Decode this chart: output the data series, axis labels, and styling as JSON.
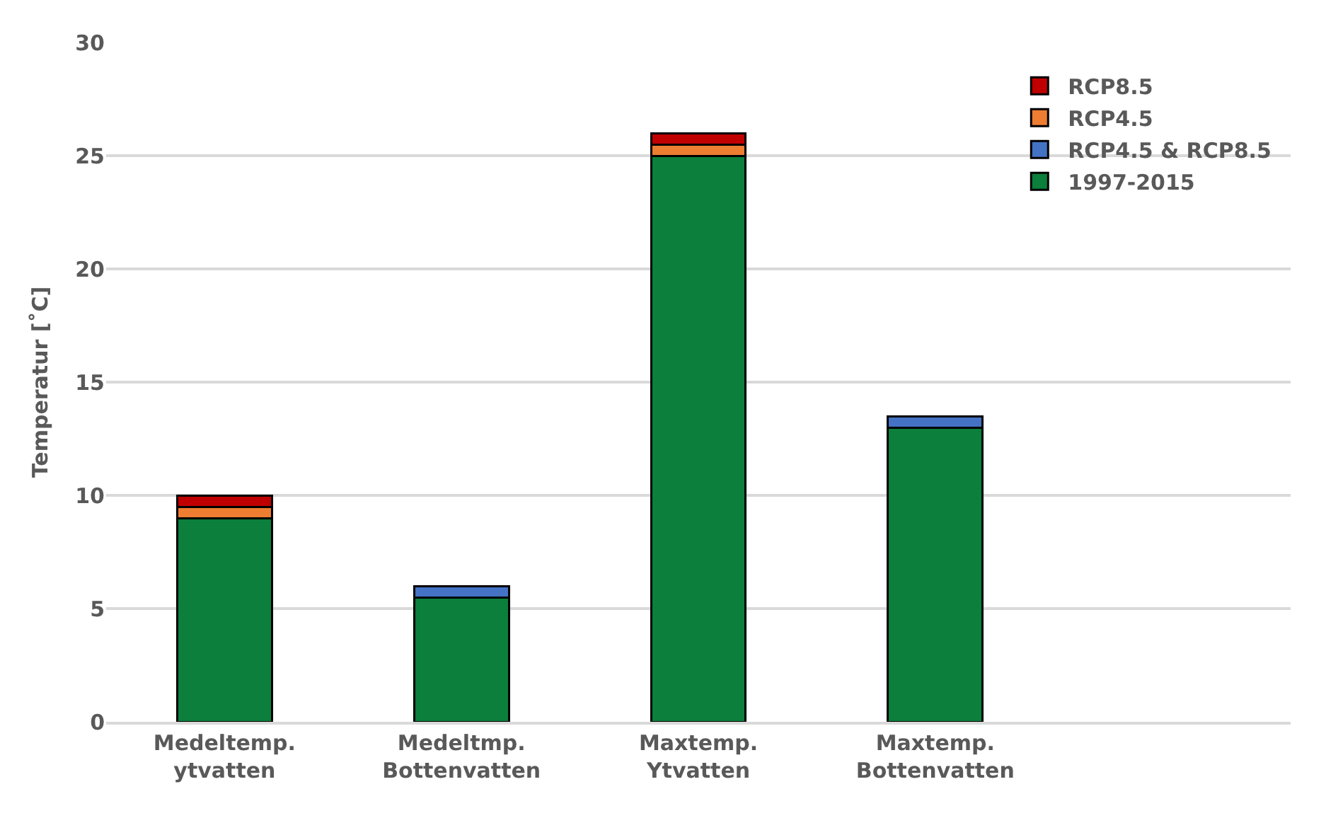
{
  "chart_data": {
    "type": "bar",
    "stacked": true,
    "ylabel": "Temperatur [˚C]",
    "categories": [
      "Medeltemp.\nytvatten",
      "Medeltmp.\nBottenvatten",
      "Maxtemp.\nYtvatten",
      "Maxtemp.\nBottenvatten",
      null
    ],
    "series": [
      {
        "name": "1997-2015",
        "color": "#0b7f3b",
        "values": [
          9.0,
          5.5,
          25.0,
          13.0,
          null
        ]
      },
      {
        "name": "RCP4.5 & RCP8.5",
        "color": "#4472c4",
        "values": [
          null,
          0.5,
          null,
          0.5,
          null
        ]
      },
      {
        "name": "RCP4.5",
        "color": "#ed7d31",
        "values": [
          0.5,
          null,
          0.5,
          null,
          null
        ]
      },
      {
        "name": "RCP8.5",
        "color": "#c00000",
        "values": [
          0.5,
          null,
          0.5,
          null,
          null
        ]
      }
    ],
    "ylim": [
      0,
      30
    ],
    "yticks": [
      0,
      5,
      10,
      15,
      20,
      25,
      30
    ],
    "grid": "y",
    "legend": "top right"
  }
}
